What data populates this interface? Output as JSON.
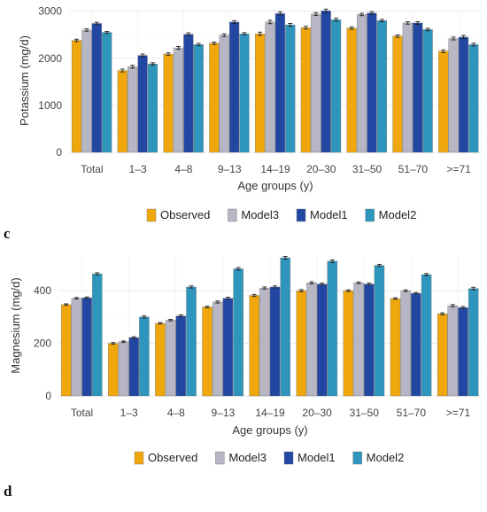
{
  "colors": {
    "Observed": "#f0a70c",
    "Model3": "#b6b6c4",
    "Model1": "#2247a3",
    "Model2": "#2e95bc"
  },
  "panel_letters": {
    "c": "c",
    "d": "d"
  },
  "chart_data": [
    {
      "type": "bar",
      "xlabel": "Age groups (y)",
      "ylabel": "Potassium (mg/d)",
      "ylim": [
        0,
        3050
      ],
      "yticks": [
        0,
        1000,
        2000,
        3000
      ],
      "grid": true,
      "legend_position": "bottom",
      "categories": [
        "Total",
        "1–3",
        "4–8",
        "9–13",
        "14–19",
        "20–30",
        "31–50",
        "51–70",
        ">=71"
      ],
      "series": [
        {
          "name": "Observed",
          "values": [
            2380,
            1740,
            2090,
            2320,
            2520,
            2650,
            2640,
            2470,
            2150
          ],
          "err": [
            25,
            30,
            25,
            25,
            35,
            30,
            25,
            25,
            30
          ]
        },
        {
          "name": "Model3",
          "values": [
            2600,
            1820,
            2220,
            2490,
            2770,
            2940,
            2930,
            2750,
            2420
          ],
          "err": [
            25,
            30,
            30,
            30,
            35,
            30,
            25,
            25,
            30
          ]
        },
        {
          "name": "Model1",
          "values": [
            2740,
            2060,
            2510,
            2770,
            2950,
            3010,
            2960,
            2750,
            2450
          ],
          "err": [
            25,
            30,
            30,
            30,
            35,
            35,
            30,
            30,
            35
          ]
        },
        {
          "name": "Model2",
          "values": [
            2550,
            1880,
            2290,
            2520,
            2710,
            2820,
            2800,
            2610,
            2290
          ],
          "err": [
            20,
            25,
            25,
            25,
            30,
            30,
            25,
            25,
            30
          ]
        }
      ]
    },
    {
      "type": "bar",
      "xlabel": "Age groups (y)",
      "ylabel": "Magnesium (mg/d)",
      "ylim": [
        0,
        535
      ],
      "yticks": [
        0,
        200,
        400
      ],
      "grid": true,
      "legend_position": "bottom",
      "categories": [
        "Total",
        "1–3",
        "4–8",
        "9–13",
        "14–19",
        "20–30",
        "31–50",
        "51–70",
        ">=71"
      ],
      "series": [
        {
          "name": "Observed",
          "values": [
            347,
            200,
            276,
            338,
            382,
            400,
            400,
            370,
            312
          ],
          "err": [
            3,
            3,
            3,
            3,
            4,
            4,
            3,
            3,
            4
          ]
        },
        {
          "name": "Model3",
          "values": [
            371,
            206,
            288,
            357,
            410,
            430,
            430,
            400,
            343
          ],
          "err": [
            3,
            3,
            3,
            4,
            4,
            4,
            3,
            3,
            4
          ]
        },
        {
          "name": "Model1",
          "values": [
            373,
            222,
            304,
            371,
            414,
            425,
            425,
            390,
            336
          ],
          "err": [
            3,
            3,
            4,
            4,
            4,
            4,
            4,
            3,
            4
          ]
        },
        {
          "name": "Model2",
          "values": [
            464,
            300,
            414,
            483,
            525,
            512,
            496,
            461,
            408
          ],
          "err": [
            4,
            4,
            4,
            5,
            5,
            5,
            4,
            4,
            5
          ]
        }
      ]
    }
  ]
}
